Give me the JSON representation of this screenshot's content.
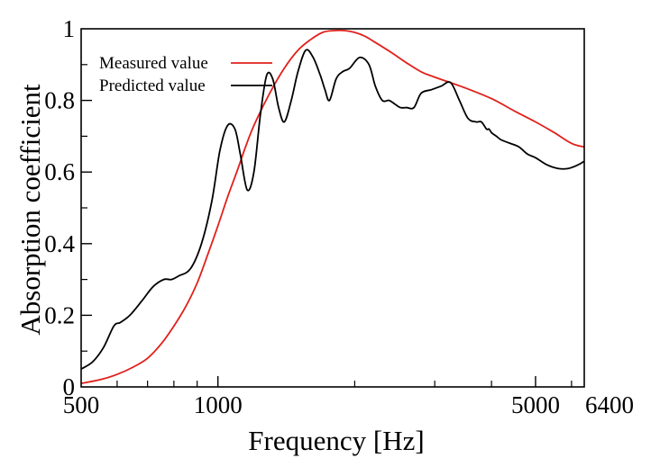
{
  "chart_data": {
    "type": "line",
    "title": "",
    "xlabel": "Frequency [Hz]",
    "ylabel": "Absorption coefficient",
    "xscale": "log",
    "xlim": [
      500,
      6400
    ],
    "ylim": [
      0,
      1
    ],
    "x_ticks": [
      500,
      1000,
      5000,
      6400
    ],
    "x_tick_labels": [
      "500",
      "1000",
      "5000",
      "6400"
    ],
    "y_ticks": [
      0,
      0.2,
      0.4,
      0.6,
      0.8,
      1
    ],
    "y_tick_labels": [
      "0",
      "0.2",
      "0.4",
      "0.6",
      "0.8",
      "1"
    ],
    "grid": false,
    "legend_position": "top-left",
    "series": [
      {
        "name": "Measured value",
        "color": "#e0201b",
        "x": [
          500,
          550,
          600,
          650,
          700,
          750,
          800,
          850,
          900,
          950,
          1000,
          1050,
          1100,
          1150,
          1200,
          1300,
          1400,
          1500,
          1600,
          1700,
          1800,
          1900,
          2000,
          2100,
          2200,
          2400,
          2600,
          2800,
          3000,
          3500,
          4000,
          4500,
          5000,
          5500,
          6000,
          6400
        ],
        "y": [
          0.01,
          0.02,
          0.035,
          0.055,
          0.08,
          0.12,
          0.17,
          0.225,
          0.29,
          0.37,
          0.45,
          0.53,
          0.6,
          0.67,
          0.73,
          0.82,
          0.89,
          0.94,
          0.97,
          0.99,
          0.995,
          0.995,
          0.99,
          0.98,
          0.965,
          0.935,
          0.905,
          0.88,
          0.865,
          0.835,
          0.805,
          0.77,
          0.74,
          0.71,
          0.68,
          0.67
        ]
      },
      {
        "name": "Predicted value",
        "color": "#000000",
        "x": [
          500,
          530,
          560,
          590,
          610,
          640,
          680,
          720,
          760,
          790,
          820,
          870,
          920,
          970,
          1010,
          1050,
          1090,
          1120,
          1160,
          1200,
          1240,
          1280,
          1320,
          1360,
          1400,
          1450,
          1500,
          1560,
          1620,
          1680,
          1720,
          1760,
          1820,
          1880,
          1950,
          2050,
          2150,
          2220,
          2300,
          2380,
          2450,
          2520,
          2600,
          2700,
          2800,
          2950,
          3100,
          3250,
          3400,
          3550,
          3700,
          3800,
          3900,
          3950,
          4000,
          4100,
          4200,
          4400,
          4600,
          4800,
          5000,
          5300,
          5600,
          5900,
          6200,
          6400
        ],
        "y": [
          0.05,
          0.07,
          0.11,
          0.17,
          0.18,
          0.2,
          0.24,
          0.28,
          0.3,
          0.3,
          0.31,
          0.33,
          0.4,
          0.52,
          0.66,
          0.73,
          0.72,
          0.65,
          0.55,
          0.6,
          0.76,
          0.87,
          0.86,
          0.78,
          0.74,
          0.8,
          0.88,
          0.94,
          0.92,
          0.87,
          0.83,
          0.8,
          0.86,
          0.88,
          0.89,
          0.92,
          0.9,
          0.84,
          0.8,
          0.8,
          0.79,
          0.78,
          0.78,
          0.78,
          0.82,
          0.83,
          0.84,
          0.85,
          0.8,
          0.75,
          0.74,
          0.74,
          0.72,
          0.72,
          0.71,
          0.7,
          0.69,
          0.68,
          0.67,
          0.65,
          0.64,
          0.62,
          0.61,
          0.61,
          0.62,
          0.63
        ]
      }
    ]
  }
}
